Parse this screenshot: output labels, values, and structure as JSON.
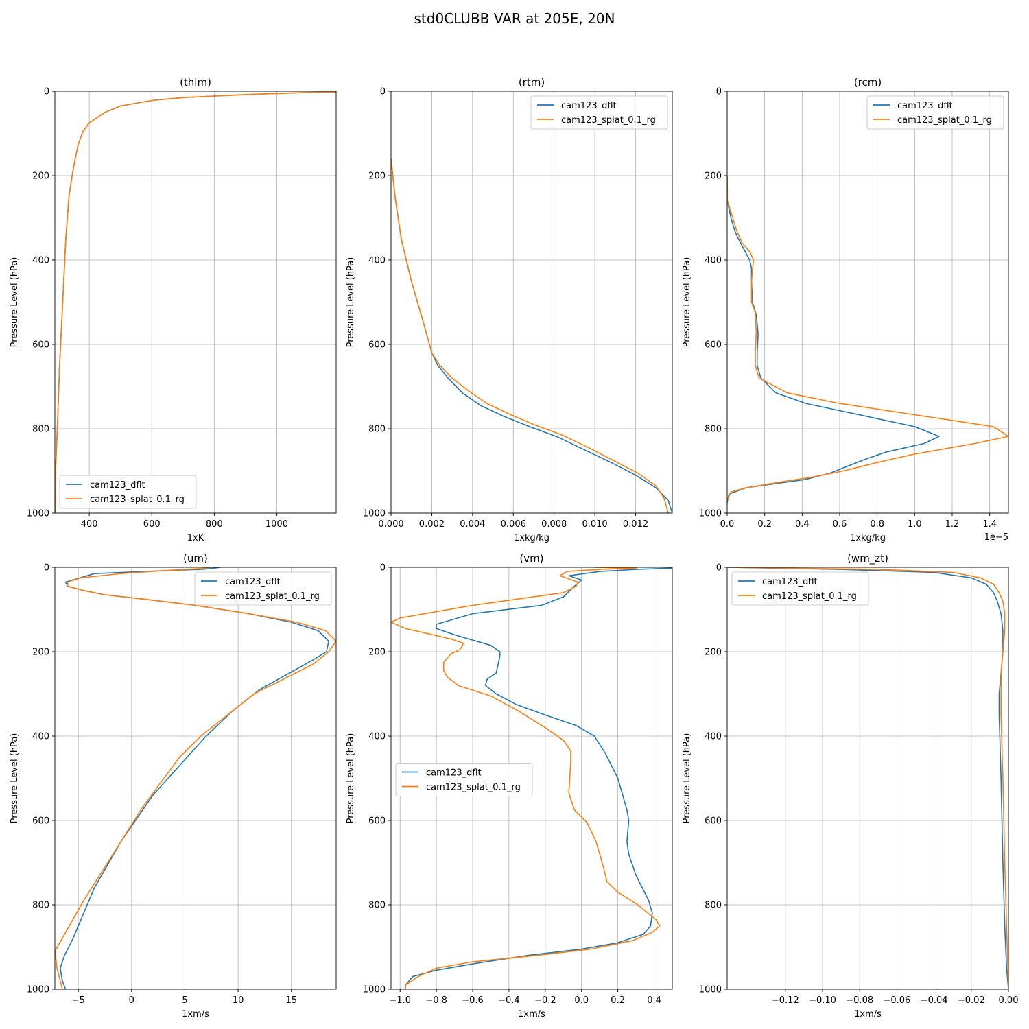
{
  "title": "std0CLUBB VAR at 205E, 20N",
  "colors": {
    "dflt": "#1f77b4",
    "splat": "#ff7f0e",
    "grid": "#b0b0b0"
  },
  "chart_data": [
    {
      "type": "line",
      "title": "(thlm)",
      "xlabel": "1xK",
      "ylabel": "Pressure Level (hPa)",
      "xlim": [
        290,
        1190
      ],
      "ylim": [
        1000,
        0
      ],
      "xticks": [
        400,
        600,
        800,
        1000
      ],
      "xtick_labels": [
        "400",
        "600",
        "800",
        "1000"
      ],
      "yticks": [
        0,
        200,
        400,
        600,
        800,
        1000
      ],
      "ytick_labels": [
        "0",
        "200",
        "400",
        "600",
        "800",
        "1000"
      ],
      "offset_text": "",
      "legend": "lower-left",
      "series": [
        {
          "name": "cam123_dflt",
          "color": "#1f77b4",
          "x": [
            1190,
            1100,
            900,
            700,
            600,
            500,
            450,
            400,
            380,
            365,
            355,
            345,
            335,
            325,
            315,
            305,
            298,
            292,
            290
          ],
          "y": [
            2,
            3,
            8,
            15,
            22,
            35,
            50,
            75,
            95,
            125,
            160,
            200,
            250,
            350,
            500,
            650,
            800,
            900,
            1000
          ]
        },
        {
          "name": "cam123_splat_0.1_rg",
          "color": "#ff7f0e",
          "x": [
            1190,
            1100,
            900,
            700,
            600,
            500,
            450,
            400,
            380,
            365,
            355,
            345,
            335,
            325,
            315,
            305,
            298,
            292,
            290
          ],
          "y": [
            2,
            3,
            8,
            15,
            22,
            35,
            50,
            75,
            95,
            125,
            160,
            200,
            250,
            350,
            500,
            650,
            800,
            900,
            1000
          ]
        }
      ]
    },
    {
      "type": "line",
      "title": "(rtm)",
      "xlabel": "1xkg/kg",
      "ylabel": "Pressure Level (hPa)",
      "xlim": [
        0,
        0.0138
      ],
      "ylim": [
        1000,
        0
      ],
      "xticks": [
        0,
        0.002,
        0.004,
        0.006,
        0.008,
        0.01,
        0.012
      ],
      "xtick_labels": [
        "0.000",
        "0.002",
        "0.004",
        "0.006",
        "0.008",
        "0.010",
        "0.012"
      ],
      "yticks": [
        0,
        200,
        400,
        600,
        800,
        1000
      ],
      "ytick_labels": [
        "0",
        "200",
        "400",
        "600",
        "800",
        "1000"
      ],
      "offset_text": "",
      "legend": "upper-right",
      "series": [
        {
          "name": "cam123_dflt",
          "color": "#1f77b4",
          "x": [
            0,
            0.0002,
            0.0005,
            0.001,
            0.0016,
            0.002,
            0.0023,
            0.0028,
            0.0035,
            0.0044,
            0.0055,
            0.0068,
            0.0082,
            0.0095,
            0.0108,
            0.012,
            0.013,
            0.0136,
            0.0138
          ],
          "y": [
            160,
            250,
            350,
            450,
            550,
            620,
            650,
            680,
            715,
            745,
            770,
            795,
            820,
            850,
            880,
            910,
            940,
            970,
            1000
          ]
        },
        {
          "name": "cam123_splat_0.1_rg",
          "color": "#ff7f0e",
          "x": [
            0,
            0.0002,
            0.0005,
            0.001,
            0.0016,
            0.002,
            0.0024,
            0.003,
            0.0038,
            0.0047,
            0.0058,
            0.007,
            0.0084,
            0.0097,
            0.0109,
            0.0121,
            0.013,
            0.0134,
            0.0136
          ],
          "y": [
            160,
            250,
            350,
            450,
            550,
            620,
            650,
            680,
            710,
            740,
            765,
            790,
            815,
            845,
            875,
            905,
            935,
            965,
            1000
          ]
        }
      ]
    },
    {
      "type": "line",
      "title": "(rcm)",
      "xlabel": "1xkg/kg",
      "ylabel": "Pressure Level (hPa)",
      "xlim": [
        0,
        1.5e-05
      ],
      "ylim": [
        1000,
        0
      ],
      "xticks": [
        0,
        2e-06,
        4e-06,
        6e-06,
        8e-06,
        1e-05,
        1.2e-05,
        1.4e-05
      ],
      "xtick_labels": [
        "0.0",
        "0.2",
        "0.4",
        "0.6",
        "0.8",
        "1.0",
        "1.2",
        "1.4"
      ],
      "yticks": [
        0,
        200,
        400,
        600,
        800,
        1000
      ],
      "ytick_labels": [
        "0",
        "200",
        "400",
        "600",
        "800",
        "1000"
      ],
      "offset_text": "1e−5",
      "legend": "upper-right",
      "series": [
        {
          "name": "cam123_dflt",
          "color": "#1f77b4",
          "x": [
            0,
            1e-08,
            2e-07,
            4e-07,
            6e-07,
            9e-07,
            1.2e-06,
            1.3e-06,
            1.3e-06,
            1.35e-06,
            1.55e-06,
            1.65e-06,
            1.6e-06,
            1.6e-06,
            1.8e-06,
            2.6e-06,
            4.2e-06,
            1e-05,
            1.13e-05,
            1.05e-05,
            8.5e-06,
            7.2e-06,
            5.5e-06,
            4.2e-06,
            1e-06,
            1e-07,
            0
          ],
          "y": [
            200,
            260,
            300,
            330,
            350,
            375,
            400,
            420,
            450,
            500,
            530,
            575,
            620,
            650,
            680,
            715,
            740,
            795,
            818,
            835,
            855,
            875,
            905,
            920,
            940,
            955,
            975
          ]
        },
        {
          "name": "cam123_splat_0.1_rg",
          "color": "#ff7f0e",
          "x": [
            0,
            1e-08,
            3e-07,
            5e-07,
            8e-07,
            1.2e-06,
            1.4e-06,
            1.3e-06,
            1.3e-06,
            1.5e-06,
            1.55e-06,
            1.5e-06,
            1.5e-06,
            1.7e-06,
            3.2e-06,
            6e-06,
            1.42e-05,
            1.5e-05,
            1.32e-05,
            1e-05,
            8e-06,
            6.2e-06,
            4.5e-06,
            3e-06,
            1e-06,
            2e-07,
            0
          ],
          "y": [
            200,
            260,
            300,
            330,
            360,
            380,
            400,
            450,
            500,
            525,
            570,
            620,
            650,
            680,
            715,
            740,
            795,
            818,
            835,
            860,
            880,
            900,
            915,
            925,
            940,
            950,
            970
          ]
        }
      ]
    },
    {
      "type": "line",
      "title": "(um)",
      "xlabel": "1xm/s",
      "ylabel": "Pressure Level (hPa)",
      "xlim": [
        -7.2,
        19.2
      ],
      "ylim": [
        1000,
        0
      ],
      "xticks": [
        -5,
        0,
        5,
        10,
        15
      ],
      "xtick_labels": [
        "−5",
        "0",
        "5",
        "10",
        "15"
      ],
      "yticks": [
        0,
        200,
        400,
        600,
        800,
        1000
      ],
      "ytick_labels": [
        "0",
        "200",
        "400",
        "600",
        "800",
        "1000"
      ],
      "offset_text": "",
      "legend": "upper-right",
      "series": [
        {
          "name": "cam123_dflt",
          "color": "#1f77b4",
          "x": [
            8.3,
            7.5,
            6.5,
            3.0,
            -3.5,
            -6.2,
            -6.0,
            -4.5,
            -2.5,
            1.0,
            6.0,
            11.0,
            15.0,
            17.5,
            18.5,
            18.3,
            17.0,
            12.0,
            9.5,
            7.0,
            2.0,
            -1.0,
            -3.5,
            -4.5,
            -5.5,
            -6.3,
            -6.7,
            -6.5,
            -6.2
          ],
          "y": [
            0,
            3,
            5,
            8,
            15,
            35,
            45,
            55,
            65,
            75,
            90,
            110,
            130,
            150,
            175,
            200,
            220,
            290,
            340,
            400,
            540,
            650,
            760,
            820,
            880,
            920,
            950,
            980,
            1000
          ]
        },
        {
          "name": "cam123_splat_0.1_rg",
          "color": "#ff7f0e",
          "x": [
            7.5,
            6.5,
            3.0,
            -1.0,
            -4.8,
            -6.0,
            -6.0,
            -4.5,
            -2.5,
            1.0,
            6.0,
            11.0,
            15.5,
            18.2,
            19.2,
            18.5,
            17.0,
            11.5,
            8.5,
            6.5,
            4.5,
            1.0,
            -2.0,
            -4.5,
            -7.2,
            -7.0,
            -6.5
          ],
          "y": [
            0,
            3,
            8,
            15,
            25,
            35,
            45,
            55,
            65,
            75,
            90,
            110,
            130,
            150,
            175,
            200,
            230,
            300,
            360,
            400,
            450,
            570,
            690,
            790,
            910,
            950,
            1000
          ]
        }
      ]
    },
    {
      "type": "line",
      "title": "(vm)",
      "xlabel": "1xm/s",
      "ylabel": "Pressure Level (hPa)",
      "xlim": [
        -1.05,
        0.5
      ],
      "ylim": [
        1000,
        0
      ],
      "xticks": [
        -1.0,
        -0.8,
        -0.6,
        -0.4,
        -0.2,
        0.0,
        0.2,
        0.4
      ],
      "xtick_labels": [
        "−1.0",
        "−0.8",
        "−0.6",
        "−0.4",
        "−0.2",
        "0.0",
        "0.2",
        "0.4"
      ],
      "yticks": [
        0,
        200,
        400,
        600,
        800,
        1000
      ],
      "ytick_labels": [
        "0",
        "200",
        "400",
        "600",
        "800",
        "1000"
      ],
      "offset_text": "",
      "legend": "center-left",
      "series": [
        {
          "name": "cam123_dflt",
          "color": "#1f77b4",
          "x": [
            0.5,
            0.3,
            0.1,
            -0.07,
            0.0,
            -0.04,
            -0.1,
            -0.22,
            -0.6,
            -0.8,
            -0.8,
            -0.7,
            -0.5,
            -0.45,
            -0.45,
            -0.47,
            -0.52,
            -0.53,
            -0.47,
            -0.36,
            -0.2,
            -0.03,
            0.07,
            0.13,
            0.2,
            0.25,
            0.26,
            0.25,
            0.26,
            0.3,
            0.37,
            0.39,
            0.38,
            0.34,
            0.2,
            0.0,
            -0.3,
            -0.6,
            -0.8,
            -0.93,
            -0.97,
            -0.97
          ],
          "y": [
            2,
            5,
            10,
            20,
            30,
            45,
            70,
            90,
            110,
            135,
            145,
            160,
            185,
            200,
            210,
            250,
            265,
            280,
            300,
            325,
            350,
            375,
            400,
            440,
            500,
            575,
            600,
            650,
            680,
            730,
            790,
            820,
            850,
            870,
            890,
            905,
            920,
            940,
            955,
            970,
            990,
            1000
          ]
        },
        {
          "name": "cam123_splat_0.1_rg",
          "color": "#ff7f0e",
          "x": [
            0.07,
            0.3,
            0.1,
            -0.08,
            -0.12,
            -0.02,
            -0.03,
            -0.1,
            -0.6,
            -1.0,
            -1.05,
            -0.97,
            -0.72,
            -0.65,
            -0.67,
            -0.72,
            -0.76,
            -0.76,
            -0.74,
            -0.68,
            -0.5,
            -0.35,
            -0.2,
            -0.1,
            -0.06,
            -0.06,
            -0.07,
            -0.04,
            0.03,
            0.08,
            0.12,
            0.14,
            0.2,
            0.31,
            0.41,
            0.43,
            0.39,
            0.28,
            0.05,
            -0.25,
            -0.6,
            -0.8,
            -0.9,
            -0.97,
            -0.97
          ],
          "y": [
            0,
            2,
            5,
            10,
            20,
            35,
            45,
            60,
            90,
            120,
            130,
            145,
            170,
            180,
            195,
            205,
            225,
            245,
            260,
            280,
            305,
            340,
            380,
            410,
            435,
            465,
            535,
            575,
            605,
            650,
            710,
            745,
            770,
            800,
            835,
            850,
            865,
            885,
            905,
            920,
            935,
            950,
            970,
            990,
            1000
          ]
        }
      ]
    },
    {
      "type": "line",
      "title": "(wm_zt)",
      "xlabel": "1xm/s",
      "ylabel": "Pressure Level (hPa)",
      "xlim": [
        -0.1513,
        0.0
      ],
      "ylim": [
        1000,
        0
      ],
      "xticks": [
        -0.12,
        -0.1,
        -0.08,
        -0.06,
        -0.04,
        -0.02,
        0.0
      ],
      "xtick_labels": [
        "−0.12",
        "−0.10",
        "−0.08",
        "−0.06",
        "−0.04",
        "−0.02",
        "0.00"
      ],
      "yticks": [
        0,
        200,
        400,
        600,
        800,
        1000
      ],
      "ytick_labels": [
        "0",
        "200",
        "400",
        "600",
        "800",
        "1000"
      ],
      "offset_text": "",
      "legend": "upper-left",
      "series": [
        {
          "name": "cam123_dflt",
          "color": "#1f77b4",
          "x": [
            -0.151,
            -0.09,
            -0.04,
            -0.02,
            -0.012,
            -0.008,
            -0.006,
            -0.004,
            -0.003,
            -0.003,
            -0.004,
            -0.005,
            -0.005,
            -0.004,
            -0.003,
            -0.002,
            -0.001,
            0.0
          ],
          "y": [
            0,
            5,
            12,
            25,
            40,
            60,
            80,
            110,
            150,
            200,
            250,
            300,
            350,
            500,
            700,
            850,
            950,
            1000
          ]
        },
        {
          "name": "cam123_splat_0.1_rg",
          "color": "#ff7f0e",
          "x": [
            -0.151,
            -0.07,
            -0.03,
            -0.015,
            -0.008,
            -0.005,
            -0.003,
            -0.002,
            -0.002,
            -0.003,
            -0.004,
            -0.004,
            -0.004,
            -0.003,
            -0.002,
            -0.001,
            0.0
          ],
          "y": [
            0,
            5,
            12,
            25,
            40,
            60,
            80,
            110,
            150,
            200,
            250,
            300,
            350,
            500,
            700,
            850,
            1000
          ]
        }
      ]
    }
  ]
}
